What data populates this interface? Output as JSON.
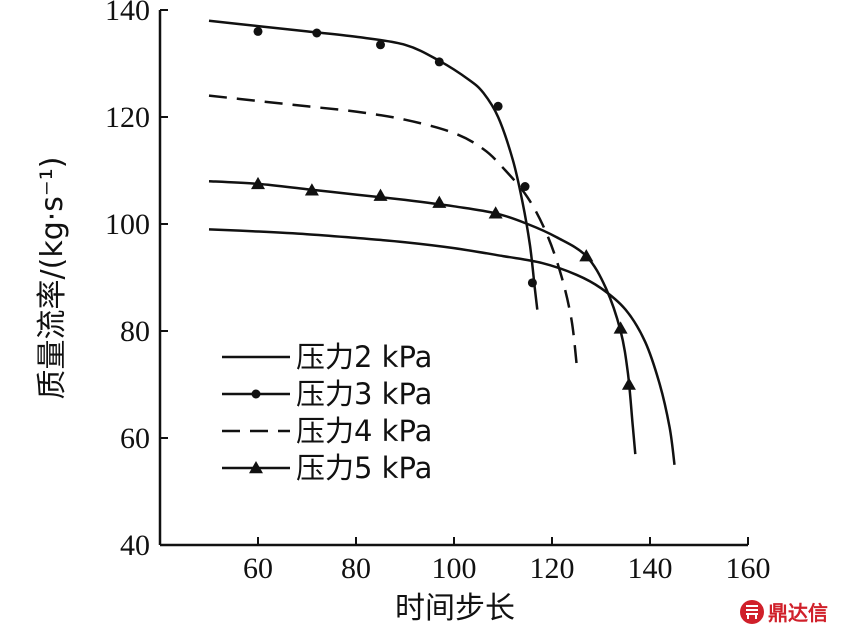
{
  "chart_data": {
    "type": "line",
    "xlabel": "时间步长",
    "ylabel": "质量流率/(kg·s⁻¹)",
    "xlim": [
      40,
      160
    ],
    "ylim": [
      40,
      140
    ],
    "x_ticks": [
      60,
      80,
      100,
      120,
      140,
      160
    ],
    "y_ticks": [
      40,
      60,
      80,
      100,
      120,
      140
    ],
    "grid": false,
    "legend_position": "lower-left",
    "series": [
      {
        "name": "压力2 kPa",
        "style": "solid",
        "marker": "none",
        "color": "#111111",
        "points": [
          [
            50,
            99
          ],
          [
            60,
            98.6
          ],
          [
            70,
            98.1
          ],
          [
            80,
            97.4
          ],
          [
            90,
            96.6
          ],
          [
            100,
            95.5
          ],
          [
            110,
            94
          ],
          [
            118,
            92.7
          ],
          [
            125,
            90.5
          ],
          [
            130,
            88
          ],
          [
            135,
            84
          ],
          [
            139,
            78
          ],
          [
            142,
            70
          ],
          [
            144,
            62
          ],
          [
            145,
            55
          ]
        ]
      },
      {
        "name": "压力3 kPa",
        "style": "solid",
        "marker": "circle",
        "color": "#111111",
        "points": [
          [
            50,
            138
          ],
          [
            60,
            137
          ],
          [
            70,
            136
          ],
          [
            80,
            135
          ],
          [
            90,
            133.5
          ],
          [
            97,
            130.5
          ],
          [
            103,
            127
          ],
          [
            106,
            124.5
          ],
          [
            109,
            120
          ],
          [
            112,
            112
          ],
          [
            114,
            104
          ],
          [
            115.5,
            96
          ],
          [
            116.5,
            88
          ],
          [
            117,
            84
          ]
        ],
        "markers": [
          [
            60,
            136
          ],
          [
            72,
            135.7
          ],
          [
            85,
            133.5
          ],
          [
            97,
            130.3
          ],
          [
            109,
            122
          ],
          [
            114.5,
            107
          ],
          [
            116,
            89
          ]
        ]
      },
      {
        "name": "压力4 kPa",
        "style": "dashed",
        "marker": "none",
        "color": "#111111",
        "points": [
          [
            50,
            124
          ],
          [
            60,
            123
          ],
          [
            70,
            122
          ],
          [
            80,
            121
          ],
          [
            90,
            119.5
          ],
          [
            100,
            117
          ],
          [
            106,
            114
          ],
          [
            110,
            110.5
          ],
          [
            115,
            105
          ],
          [
            119,
            98
          ],
          [
            122,
            90
          ],
          [
            124,
            82
          ],
          [
            125,
            74
          ]
        ]
      },
      {
        "name": "压力5 kPa",
        "style": "solid",
        "marker": "triangle",
        "color": "#111111",
        "points": [
          [
            50,
            108
          ],
          [
            60,
            107.5
          ],
          [
            70,
            106.5
          ],
          [
            80,
            105.5
          ],
          [
            90,
            104.5
          ],
          [
            100,
            103.3
          ],
          [
            108.5,
            102
          ],
          [
            115,
            100
          ],
          [
            121,
            97.5
          ],
          [
            127,
            94
          ],
          [
            131,
            88
          ],
          [
            134,
            80
          ],
          [
            135.5,
            72
          ],
          [
            136.5,
            62
          ],
          [
            137,
            57
          ]
        ],
        "markers": [
          [
            60,
            107.5
          ],
          [
            71,
            106.3
          ],
          [
            85,
            105.3
          ],
          [
            97,
            104
          ],
          [
            108.5,
            102
          ],
          [
            127,
            94
          ],
          [
            134,
            80.5
          ],
          [
            135.7,
            70
          ]
        ]
      }
    ]
  }
}
